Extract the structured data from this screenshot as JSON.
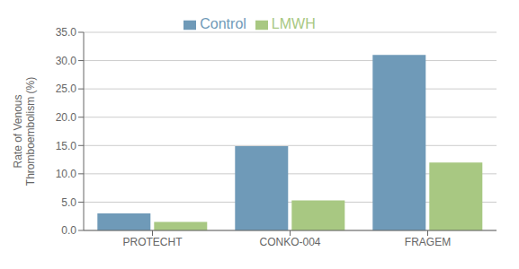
{
  "chart_data": {
    "type": "bar",
    "ylabel": "Rate of Venous\nThromboembolism (%)",
    "categories": [
      "PROTECHT",
      "CONKO-004",
      "FRAGEM"
    ],
    "series": [
      {
        "name": "Control",
        "color": "#6f9ab8",
        "values": [
          3.0,
          14.9,
          31.0
        ]
      },
      {
        "name": "LMWH",
        "color": "#a8c882",
        "values": [
          1.5,
          5.3,
          12.0
        ]
      }
    ],
    "ylim": [
      0,
      35.0
    ],
    "yticks": [
      {
        "value": 0.0,
        "label": "0.0"
      },
      {
        "value": 5.0,
        "label": "5.0"
      },
      {
        "value": 10.0,
        "label": "10.0"
      },
      {
        "value": 15.0,
        "label": "15.0"
      },
      {
        "value": 20.0,
        "label": "20.0"
      },
      {
        "value": 25.0,
        "label": "25.0"
      },
      {
        "value": 30.0,
        "label": "30.0"
      },
      {
        "value": 35.0,
        "label": "35.0"
      }
    ],
    "grid": true,
    "legend": "upper center"
  }
}
